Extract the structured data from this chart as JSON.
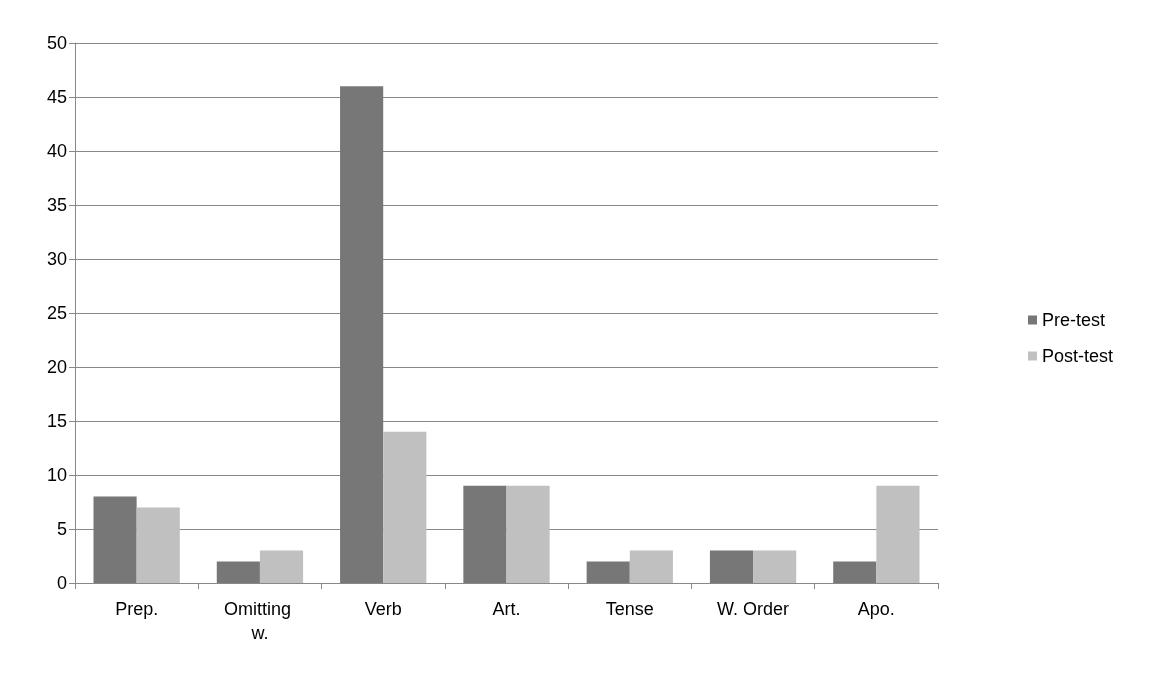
{
  "chart_data": {
    "type": "bar",
    "categories": [
      "Prep.",
      "Omitting w.",
      "Verb",
      "Art.",
      "Tense",
      "W. Order",
      "Apo."
    ],
    "series": [
      {
        "name": "Pre-test",
        "color": "#777777",
        "values": [
          8,
          2,
          46,
          9,
          2,
          3,
          2
        ]
      },
      {
        "name": "Post-test",
        "color": "#c0c0c0",
        "values": [
          7,
          3,
          14,
          9,
          3,
          3,
          9
        ]
      }
    ],
    "ylim": [
      0,
      50
    ],
    "yticks": [
      0,
      5,
      10,
      15,
      20,
      25,
      30,
      35,
      40,
      45,
      50
    ],
    "grid": "y",
    "legend": "right"
  }
}
